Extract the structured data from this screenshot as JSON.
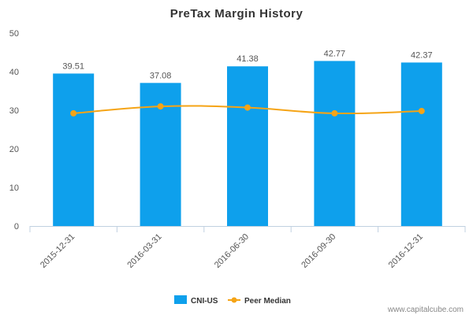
{
  "chart_data": {
    "type": "bar",
    "title": "PreTax Margin History",
    "categories": [
      "2015-12-31",
      "2016-03-31",
      "2016-06-30",
      "2016-09-30",
      "2016-12-31"
    ],
    "series": [
      {
        "name": "CNI-US",
        "type": "bar",
        "color": "#0ea0ec",
        "values": [
          39.51,
          37.08,
          41.38,
          42.77,
          42.37
        ]
      },
      {
        "name": "Peer Median",
        "type": "line",
        "color": "#f5a416",
        "values": [
          29.2,
          31.0,
          30.7,
          29.2,
          29.8
        ]
      }
    ],
    "data_labels": [
      "39.51",
      "37.08",
      "41.38",
      "42.77",
      "42.37"
    ],
    "y_ticks": [
      "0",
      "10",
      "20",
      "30",
      "40",
      "50"
    ],
    "ylim": [
      0,
      50
    ],
    "xlabel": "",
    "ylabel": "",
    "grid": false,
    "legend_position": "bottom-center"
  },
  "watermark": "www.capitalcube.com"
}
